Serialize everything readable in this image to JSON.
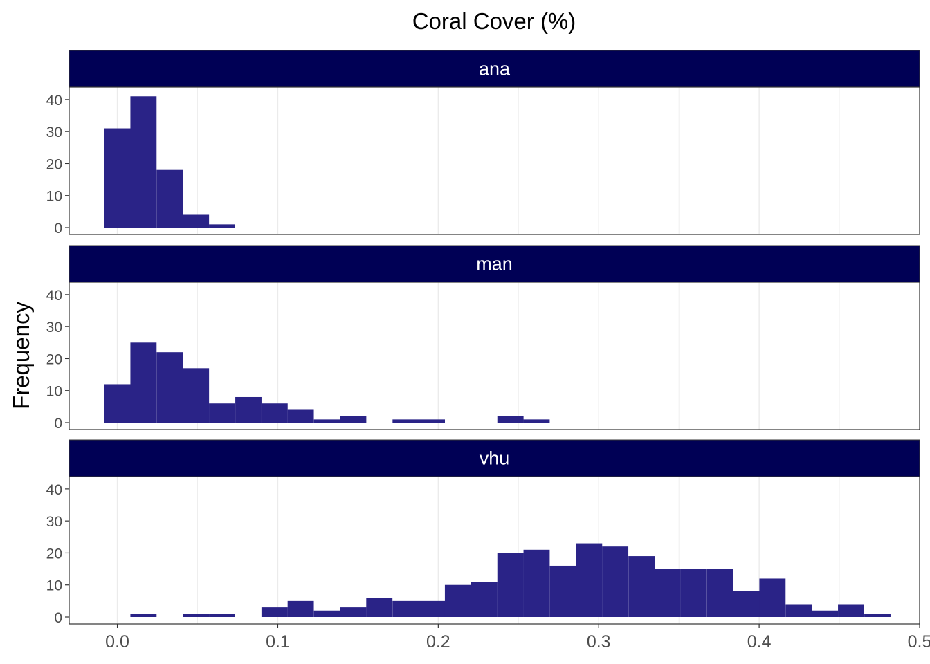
{
  "chart_data": {
    "type": "bar",
    "title": "Coral Cover (%)",
    "xlabel": "",
    "ylabel": "Frequency",
    "xlim": [
      -0.03,
      0.5
    ],
    "ylim": [
      0,
      43
    ],
    "x_ticks": [
      0.0,
      0.1,
      0.2,
      0.3,
      0.4,
      0.5
    ],
    "x_tick_labels": [
      "0.0",
      "0.1",
      "0.2",
      "0.3",
      "0.4",
      "0.5"
    ],
    "y_ticks": [
      0,
      10,
      20,
      30,
      40
    ],
    "y_tick_labels": [
      "0",
      "10",
      "20",
      "30",
      "40"
    ],
    "bin_width": 0.01633,
    "bar_color": "#2a2387",
    "strip_color": "#000055",
    "grid": true,
    "panels": [
      {
        "name": "ana",
        "bins": [
          {
            "x": 0.0,
            "count": 31
          },
          {
            "x": 0.0163,
            "count": 41
          },
          {
            "x": 0.0327,
            "count": 18
          },
          {
            "x": 0.049,
            "count": 4
          },
          {
            "x": 0.0653,
            "count": 1
          }
        ]
      },
      {
        "name": "man",
        "bins": [
          {
            "x": 0.0,
            "count": 12
          },
          {
            "x": 0.0163,
            "count": 25
          },
          {
            "x": 0.0327,
            "count": 22
          },
          {
            "x": 0.049,
            "count": 17
          },
          {
            "x": 0.0653,
            "count": 6
          },
          {
            "x": 0.0817,
            "count": 8
          },
          {
            "x": 0.098,
            "count": 6
          },
          {
            "x": 0.1143,
            "count": 4
          },
          {
            "x": 0.1307,
            "count": 1
          },
          {
            "x": 0.147,
            "count": 2
          },
          {
            "x": 0.1797,
            "count": 1
          },
          {
            "x": 0.196,
            "count": 1
          },
          {
            "x": 0.245,
            "count": 2
          },
          {
            "x": 0.2613,
            "count": 1
          }
        ]
      },
      {
        "name": "vhu",
        "bins": [
          {
            "x": 0.0163,
            "count": 1
          },
          {
            "x": 0.049,
            "count": 1
          },
          {
            "x": 0.0653,
            "count": 1
          },
          {
            "x": 0.098,
            "count": 3
          },
          {
            "x": 0.1143,
            "count": 5
          },
          {
            "x": 0.1307,
            "count": 2
          },
          {
            "x": 0.147,
            "count": 3
          },
          {
            "x": 0.1633,
            "count": 6
          },
          {
            "x": 0.1797,
            "count": 5
          },
          {
            "x": 0.196,
            "count": 5
          },
          {
            "x": 0.2123,
            "count": 10
          },
          {
            "x": 0.2287,
            "count": 11
          },
          {
            "x": 0.245,
            "count": 20
          },
          {
            "x": 0.2613,
            "count": 21
          },
          {
            "x": 0.2777,
            "count": 16
          },
          {
            "x": 0.294,
            "count": 23
          },
          {
            "x": 0.3103,
            "count": 22
          },
          {
            "x": 0.3267,
            "count": 19
          },
          {
            "x": 0.343,
            "count": 15
          },
          {
            "x": 0.3593,
            "count": 15
          },
          {
            "x": 0.3757,
            "count": 15
          },
          {
            "x": 0.392,
            "count": 8
          },
          {
            "x": 0.4083,
            "count": 12
          },
          {
            "x": 0.4247,
            "count": 4
          },
          {
            "x": 0.441,
            "count": 2
          },
          {
            "x": 0.4573,
            "count": 4
          },
          {
            "x": 0.4737,
            "count": 1
          }
        ]
      }
    ]
  }
}
